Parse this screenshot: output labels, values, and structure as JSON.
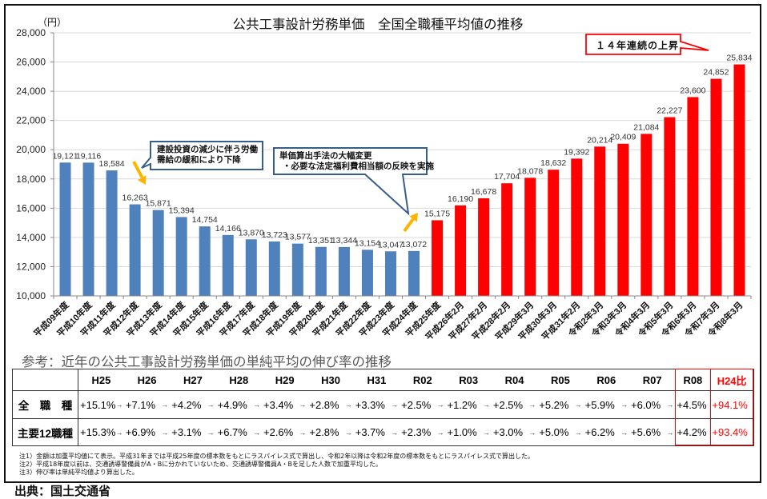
{
  "chart_data": {
    "type": "bar",
    "title": "公共工事設計労務単価　全国全職種平均値の推移",
    "ylabel": "（円）",
    "xlabel": "",
    "ylim": [
      10000,
      28000
    ],
    "yticks": [
      10000,
      12000,
      14000,
      16000,
      18000,
      20000,
      22000,
      24000,
      26000,
      28000
    ],
    "ytick_labels": [
      "10,000",
      "12,000",
      "14,000",
      "16,000",
      "18,000",
      "20,000",
      "22,000",
      "24,000",
      "26,000",
      "28,000"
    ],
    "grid": true,
    "categories": [
      "平成09年度",
      "平成10年度",
      "平成11年度",
      "平成12年度",
      "平成13年度",
      "平成14年度",
      "平成15年度",
      "平成16年度",
      "平成17年度",
      "平成18年度",
      "平成19年度",
      "平成20年度",
      "平成21年度",
      "平成22年度",
      "平成23年度",
      "平成24年度",
      "平成25年度",
      "平成26年2月",
      "平成27年2月",
      "平成28年2月",
      "平成29年3月",
      "平成30年3月",
      "平成31年2月",
      "令和2年3月",
      "令和3年3月",
      "令和4年3月",
      "令和5年3月",
      "令和6年3月",
      "令和7年3月",
      "令和8年3月"
    ],
    "values": [
      19121,
      19116,
      18584,
      16263,
      15871,
      15394,
      14754,
      14166,
      13870,
      13723,
      13577,
      13351,
      13344,
      13154,
      13047,
      13072,
      15175,
      16190,
      16678,
      17704,
      18078,
      18632,
      19392,
      20214,
      20409,
      21084,
      22227,
      23600,
      24852,
      25834
    ],
    "data_labels": [
      "19,121",
      "19,116",
      "18,584",
      "16,263",
      "15,871",
      "15,394",
      "14,754",
      "14,166",
      "13,870",
      "13,723",
      "13,577",
      "13,351",
      "13,344",
      "13,154",
      "13,047",
      "13,072",
      "15,175",
      "16,190",
      "16,678",
      "17,704",
      "18,078",
      "18,632",
      "19,392",
      "20,214",
      "20,409",
      "21,084",
      "22,227",
      "23,600",
      "24,852",
      "25,834"
    ],
    "rising_start_index": 16,
    "bar_colors": {
      "declining": "#4F81BD",
      "rising": "#FF0000"
    },
    "annotations": [
      {
        "lines": [
          "建設投資の減少に伴う労働",
          "需給の緩和により下降"
        ]
      },
      {
        "lines": [
          "単価算出手法の大幅変更",
          "・必要な法定福利費相当額の反映を実施"
        ]
      },
      {
        "lines": [
          "１４年連続の上昇"
        ]
      }
    ]
  },
  "colors": {
    "callout_border": "#385D8A",
    "arrow_orange": "#FFB400",
    "highlight_red": "#FF0000",
    "grid": "#D9D9D9"
  },
  "table": {
    "caption": "参考：近年の公共工事設計労務単価の単純平均の伸び率の推移",
    "headers": [
      "H25",
      "H26",
      "H27",
      "H28",
      "H29",
      "H30",
      "H31",
      "R02",
      "R03",
      "R04",
      "R05",
      "R06",
      "R07",
      "R08",
      "H24比"
    ],
    "arrow": "→",
    "rows": [
      {
        "label": "全　職　種",
        "values": [
          "+15.1%",
          "+7.1%",
          "+4.2%",
          "+4.9%",
          "+3.4%",
          "+2.8%",
          "+3.3%",
          "+2.5%",
          "+1.2%",
          "+2.5%",
          "+5.2%",
          "+5.9%",
          "+6.0%",
          "+4.5%",
          "+94.1%"
        ]
      },
      {
        "label": "主要12職種",
        "values": [
          "+15.3%",
          "+6.9%",
          "+3.1%",
          "+6.7%",
          "+2.6%",
          "+2.8%",
          "+3.7%",
          "+2.3%",
          "+1.0%",
          "+3.0%",
          "+5.0%",
          "+6.2%",
          "+5.6%",
          "+4.2%",
          "+93.4%"
        ]
      }
    ]
  },
  "notes": [
    "注1）金額は加重平均値にて表示。平成31年までは平成25年度の標本数をもとにラスパイレス式で算出し、令和2年以降は令和2年度の標本数をもとにラスパイレス式で算出した。",
    "注2）平成18年度以前は、交通誘導警備員がA・Bに分かれていないため、交通誘導警備員A・Bを足した人数で加重平均した。",
    "注3）伸び率は単純平均値より算出した。"
  ],
  "source": "出典：国土交通省"
}
